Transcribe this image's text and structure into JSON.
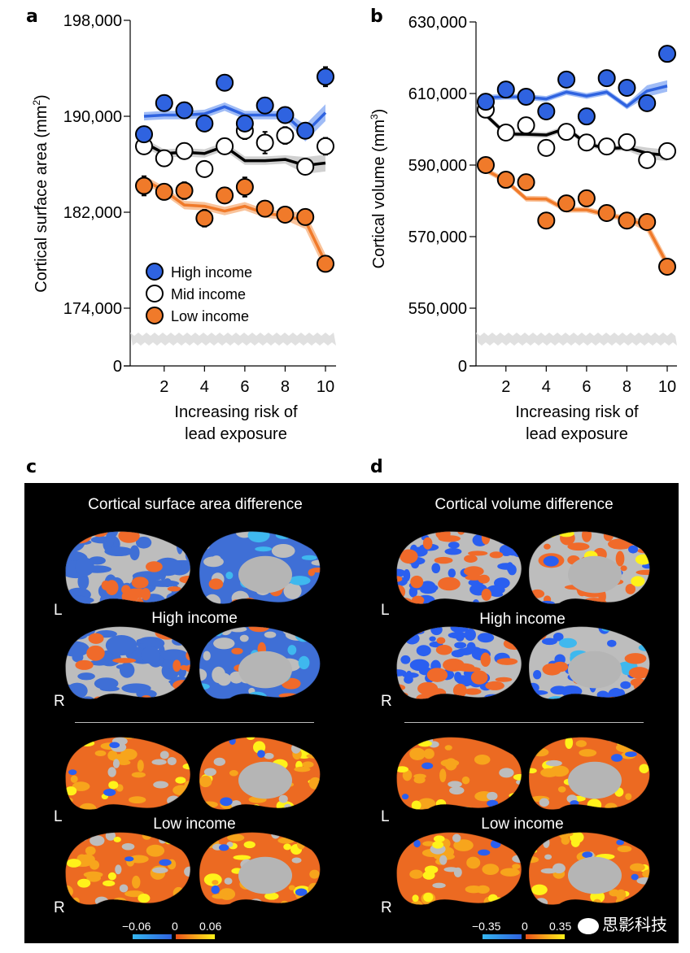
{
  "panels": {
    "a_letter": "a",
    "b_letter": "b",
    "c_letter": "c",
    "d_letter": "d"
  },
  "colors": {
    "high": "#2f63e0",
    "high_band": "#8fb0f5",
    "mid": "#ffffff",
    "mid_line": "#000000",
    "mid_band": "#c8c8c8",
    "low": "#f07a2a",
    "low_band": "#f8b98a",
    "break_band": "#e0e0e0"
  },
  "legend": [
    "High income",
    "Mid income",
    "Low income"
  ],
  "chart_data": [
    {
      "type": "scatter",
      "panel": "a",
      "title": "",
      "xlabel_lines": [
        "Increasing risk of",
        "lead exposure"
      ],
      "ylabel": "Cortical surface area (mm",
      "ylabel_sup": "2",
      "ylabel_end": ")",
      "x_ticks": [
        2,
        4,
        6,
        8,
        10
      ],
      "y_ticks": [
        "198,000",
        "190,000",
        "182,000",
        "174,000",
        "0"
      ],
      "y_tick_values": [
        198000,
        190000,
        182000,
        174000
      ],
      "ylim": [
        172000,
        198000
      ],
      "axis_break": true,
      "legend_position": "lower-left",
      "x": [
        1,
        2,
        3,
        4,
        5,
        6,
        7,
        8,
        9,
        10
      ],
      "series": [
        {
          "name": "High income",
          "points": [
            188500,
            191100,
            190500,
            189400,
            192800,
            189400,
            190900,
            190100,
            188800,
            193300
          ],
          "err": [
            400,
            400,
            400,
            500,
            400,
            500,
            600,
            600,
            500,
            800
          ],
          "fit": [
            190000,
            190100,
            190100,
            190200,
            190800,
            190100,
            190100,
            190100,
            188600,
            190300
          ]
        },
        {
          "name": "Mid income",
          "points": [
            187500,
            186500,
            187100,
            185600,
            187500,
            188800,
            187800,
            188400,
            185800,
            187500
          ],
          "err": [
            400,
            400,
            400,
            600,
            500,
            700,
            900,
            700,
            600,
            700
          ],
          "fit": [
            187800,
            186900,
            187000,
            186900,
            187500,
            186300,
            186300,
            186400,
            185900,
            186100
          ]
        },
        {
          "name": "Low income",
          "points": [
            184200,
            183700,
            183800,
            181500,
            183400,
            184100,
            182300,
            181800,
            181600,
            177700
          ],
          "err": [
            800,
            600,
            700,
            700,
            500,
            800,
            600,
            600,
            500,
            0
          ],
          "fit": [
            184700,
            183800,
            182600,
            182500,
            182100,
            182500,
            181900,
            181700,
            181300,
            177800
          ]
        }
      ]
    },
    {
      "type": "scatter",
      "panel": "b",
      "title": "",
      "xlabel_lines": [
        "Increasing risk of",
        "lead exposure"
      ],
      "ylabel": "Cortical volume (mm",
      "ylabel_sup": "3",
      "ylabel_end": ")",
      "x_ticks": [
        2,
        4,
        6,
        8,
        10
      ],
      "y_ticks": [
        "630,000",
        "610,000",
        "590,000",
        "570,000",
        "550,000",
        "0"
      ],
      "y_tick_values": [
        630000,
        610000,
        590000,
        570000,
        550000
      ],
      "ylim": [
        545000,
        630000
      ],
      "axis_break": true,
      "x": [
        1,
        2,
        3,
        4,
        5,
        6,
        7,
        8,
        9,
        10
      ],
      "series": [
        {
          "name": "High income",
          "points": [
            607700,
            611100,
            609100,
            605000,
            613900,
            603600,
            614300,
            611600,
            607300,
            621100
          ],
          "err": [
            800,
            700,
            700,
            900,
            900,
            900,
            1200,
            1200,
            1000,
            1400
          ],
          "fit": [
            608800,
            609100,
            609000,
            608500,
            610400,
            609300,
            610400,
            606400,
            610700,
            612100
          ]
        },
        {
          "name": "Mid income",
          "points": [
            605500,
            599100,
            601100,
            594800,
            599300,
            596300,
            595200,
            596400,
            591400,
            593900
          ],
          "err": [
            900,
            700,
            900,
            1100,
            900,
            900,
            1200,
            1100,
            1100,
            1200
          ],
          "fit": [
            604000,
            598700,
            598600,
            598400,
            600300,
            596000,
            594600,
            594900,
            593300,
            592700
          ]
        },
        {
          "name": "Low income",
          "points": [
            590000,
            585900,
            585200,
            574500,
            579300,
            580700,
            576600,
            574500,
            574100,
            561600
          ],
          "err": [
            1400,
            1100,
            1200,
            1100,
            900,
            1400,
            1100,
            900,
            700,
            0
          ],
          "fit": [
            588600,
            585600,
            580600,
            580500,
            577500,
            577500,
            576100,
            575000,
            572900,
            562300
          ]
        }
      ]
    }
  ],
  "brains": {
    "c_title": "Cortical surface area difference",
    "d_title": "Cortical volume difference",
    "left_label": "L",
    "right_label": "R",
    "high_label": "High income",
    "low_label": "Low income",
    "c_scale": {
      "min": "−0.06",
      "mid": "0",
      "max": "0.06"
    },
    "d_scale": {
      "min": "−0.35",
      "mid": "0",
      "max": "0.35"
    },
    "neg_gradient": [
      "#35b6f0",
      "#2f63e0"
    ],
    "pos_gradient": [
      "#e8501a",
      "#f7a51c",
      "#fff21a"
    ],
    "surface_gray": "#bdbdbd",
    "watermark": "思影科技"
  }
}
